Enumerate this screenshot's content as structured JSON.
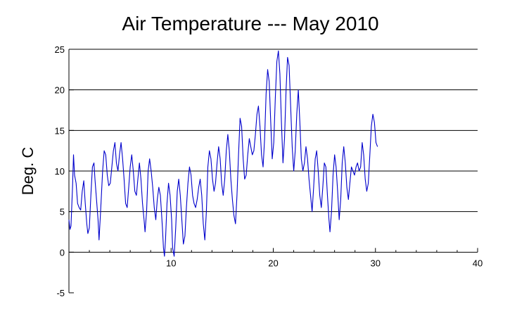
{
  "chart_data": {
    "type": "line",
    "title": "Air Temperature --- May 2010",
    "xlabel": "",
    "ylabel": "Deg. C",
    "xlim": [
      0,
      40
    ],
    "ylim": [
      -5,
      25
    ],
    "x_ticks": [
      10,
      20,
      30,
      40
    ],
    "y_ticks": [
      25,
      20,
      15,
      10,
      5,
      0,
      -5
    ],
    "grid": "horizontal",
    "legend": "none",
    "series": [
      {
        "color": "#0000cc",
        "points": [
          [
            0.0,
            4.0
          ],
          [
            0.1,
            2.8
          ],
          [
            0.2,
            3.2
          ],
          [
            0.35,
            8.0
          ],
          [
            0.45,
            12.0
          ],
          [
            0.55,
            9.5
          ],
          [
            0.7,
            8.5
          ],
          [
            0.85,
            6.0
          ],
          [
            1.0,
            5.5
          ],
          [
            1.15,
            5.2
          ],
          [
            1.3,
            7.5
          ],
          [
            1.45,
            8.8
          ],
          [
            1.6,
            6.0
          ],
          [
            1.75,
            3.5
          ],
          [
            1.85,
            2.3
          ],
          [
            2.0,
            3.0
          ],
          [
            2.15,
            7.0
          ],
          [
            2.3,
            10.5
          ],
          [
            2.45,
            11.0
          ],
          [
            2.55,
            9.0
          ],
          [
            2.7,
            6.5
          ],
          [
            2.85,
            4.0
          ],
          [
            2.95,
            1.5
          ],
          [
            3.1,
            5.0
          ],
          [
            3.3,
            10.0
          ],
          [
            3.45,
            12.5
          ],
          [
            3.6,
            12.0
          ],
          [
            3.75,
            9.5
          ],
          [
            3.9,
            8.2
          ],
          [
            4.05,
            8.5
          ],
          [
            4.2,
            10.5
          ],
          [
            4.35,
            12.5
          ],
          [
            4.5,
            13.5
          ],
          [
            4.65,
            11.0
          ],
          [
            4.8,
            10.0
          ],
          [
            4.95,
            12.0
          ],
          [
            5.1,
            13.5
          ],
          [
            5.25,
            11.5
          ],
          [
            5.4,
            9.0
          ],
          [
            5.55,
            6.0
          ],
          [
            5.7,
            5.5
          ],
          [
            5.85,
            8.0
          ],
          [
            6.0,
            10.5
          ],
          [
            6.15,
            12.0
          ],
          [
            6.3,
            10.0
          ],
          [
            6.45,
            7.5
          ],
          [
            6.6,
            7.0
          ],
          [
            6.75,
            9.0
          ],
          [
            6.9,
            11.0
          ],
          [
            7.05,
            9.0
          ],
          [
            7.2,
            6.0
          ],
          [
            7.35,
            4.0
          ],
          [
            7.45,
            2.5
          ],
          [
            7.6,
            5.0
          ],
          [
            7.75,
            10.0
          ],
          [
            7.9,
            11.5
          ],
          [
            8.05,
            10.0
          ],
          [
            8.2,
            8.0
          ],
          [
            8.35,
            5.5
          ],
          [
            8.5,
            4.0
          ],
          [
            8.65,
            6.5
          ],
          [
            8.8,
            8.0
          ],
          [
            8.95,
            7.0
          ],
          [
            9.05,
            5.0
          ],
          [
            9.15,
            3.0
          ],
          [
            9.25,
            0.5
          ],
          [
            9.35,
            -0.5
          ],
          [
            9.45,
            1.5
          ],
          [
            9.6,
            6.0
          ],
          [
            9.75,
            8.5
          ],
          [
            9.9,
            7.0
          ],
          [
            10.05,
            4.0
          ],
          [
            10.15,
            0.5
          ],
          [
            10.3,
            -0.5
          ],
          [
            10.45,
            3.0
          ],
          [
            10.6,
            7.5
          ],
          [
            10.75,
            9.0
          ],
          [
            10.9,
            7.0
          ],
          [
            11.05,
            4.0
          ],
          [
            11.2,
            1.0
          ],
          [
            11.35,
            2.0
          ],
          [
            11.5,
            5.5
          ],
          [
            11.65,
            8.5
          ],
          [
            11.8,
            10.5
          ],
          [
            11.95,
            9.5
          ],
          [
            12.1,
            7.0
          ],
          [
            12.25,
            6.0
          ],
          [
            12.4,
            5.5
          ],
          [
            12.55,
            6.5
          ],
          [
            12.7,
            8.0
          ],
          [
            12.85,
            9.0
          ],
          [
            13.0,
            7.0
          ],
          [
            13.15,
            3.5
          ],
          [
            13.3,
            1.5
          ],
          [
            13.45,
            5.0
          ],
          [
            13.6,
            10.5
          ],
          [
            13.75,
            12.5
          ],
          [
            13.9,
            11.5
          ],
          [
            14.05,
            9.0
          ],
          [
            14.2,
            7.5
          ],
          [
            14.35,
            8.5
          ],
          [
            14.5,
            11.0
          ],
          [
            14.65,
            13.0
          ],
          [
            14.8,
            11.5
          ],
          [
            14.95,
            8.5
          ],
          [
            15.1,
            7.0
          ],
          [
            15.25,
            9.0
          ],
          [
            15.4,
            12.5
          ],
          [
            15.55,
            14.5
          ],
          [
            15.7,
            12.5
          ],
          [
            15.85,
            9.0
          ],
          [
            16.0,
            6.5
          ],
          [
            16.15,
            4.5
          ],
          [
            16.3,
            3.5
          ],
          [
            16.45,
            7.0
          ],
          [
            16.6,
            12.0
          ],
          [
            16.75,
            16.5
          ],
          [
            16.9,
            15.5
          ],
          [
            17.05,
            11.5
          ],
          [
            17.2,
            9.0
          ],
          [
            17.35,
            9.5
          ],
          [
            17.5,
            12.0
          ],
          [
            17.65,
            14.0
          ],
          [
            17.8,
            13.0
          ],
          [
            17.95,
            12.0
          ],
          [
            18.1,
            12.5
          ],
          [
            18.25,
            14.5
          ],
          [
            18.4,
            17.0
          ],
          [
            18.55,
            18.0
          ],
          [
            18.7,
            15.5
          ],
          [
            18.85,
            12.0
          ],
          [
            19.0,
            10.5
          ],
          [
            19.15,
            14.0
          ],
          [
            19.3,
            19.5
          ],
          [
            19.45,
            22.5
          ],
          [
            19.6,
            21.0
          ],
          [
            19.75,
            16.0
          ],
          [
            19.9,
            11.5
          ],
          [
            20.05,
            13.5
          ],
          [
            20.2,
            19.0
          ],
          [
            20.35,
            23.5
          ],
          [
            20.5,
            24.8
          ],
          [
            20.65,
            22.0
          ],
          [
            20.8,
            16.0
          ],
          [
            20.95,
            11.0
          ],
          [
            21.1,
            14.0
          ],
          [
            21.25,
            20.0
          ],
          [
            21.4,
            24.0
          ],
          [
            21.55,
            23.0
          ],
          [
            21.7,
            18.0
          ],
          [
            21.85,
            13.0
          ],
          [
            22.0,
            10.0
          ],
          [
            22.15,
            12.5
          ],
          [
            22.3,
            17.0
          ],
          [
            22.45,
            20.0
          ],
          [
            22.6,
            16.0
          ],
          [
            22.75,
            11.5
          ],
          [
            22.9,
            10.0
          ],
          [
            23.05,
            11.0
          ],
          [
            23.2,
            13.0
          ],
          [
            23.35,
            11.5
          ],
          [
            23.5,
            9.0
          ],
          [
            23.65,
            7.0
          ],
          [
            23.8,
            5.0
          ],
          [
            23.95,
            8.0
          ],
          [
            24.1,
            11.5
          ],
          [
            24.25,
            12.5
          ],
          [
            24.4,
            10.0
          ],
          [
            24.55,
            7.0
          ],
          [
            24.7,
            5.5
          ],
          [
            24.85,
            8.0
          ],
          [
            25.0,
            11.0
          ],
          [
            25.15,
            10.5
          ],
          [
            25.3,
            7.0
          ],
          [
            25.45,
            4.0
          ],
          [
            25.55,
            2.5
          ],
          [
            25.7,
            5.0
          ],
          [
            25.85,
            9.5
          ],
          [
            26.0,
            12.0
          ],
          [
            26.15,
            10.5
          ],
          [
            26.3,
            7.5
          ],
          [
            26.45,
            4.0
          ],
          [
            26.6,
            6.5
          ],
          [
            26.75,
            11.0
          ],
          [
            26.9,
            13.0
          ],
          [
            27.05,
            11.0
          ],
          [
            27.2,
            8.0
          ],
          [
            27.35,
            6.5
          ],
          [
            27.5,
            8.5
          ],
          [
            27.65,
            10.5
          ],
          [
            27.8,
            10.0
          ],
          [
            27.95,
            9.5
          ],
          [
            28.1,
            10.5
          ],
          [
            28.25,
            11.0
          ],
          [
            28.4,
            10.0
          ],
          [
            28.55,
            10.5
          ],
          [
            28.7,
            13.5
          ],
          [
            28.85,
            12.0
          ],
          [
            29.0,
            9.0
          ],
          [
            29.15,
            7.5
          ],
          [
            29.3,
            8.5
          ],
          [
            29.45,
            12.0
          ],
          [
            29.6,
            15.5
          ],
          [
            29.75,
            17.0
          ],
          [
            29.9,
            16.0
          ],
          [
            30.05,
            13.5
          ],
          [
            30.2,
            13.0
          ]
        ]
      }
    ]
  }
}
